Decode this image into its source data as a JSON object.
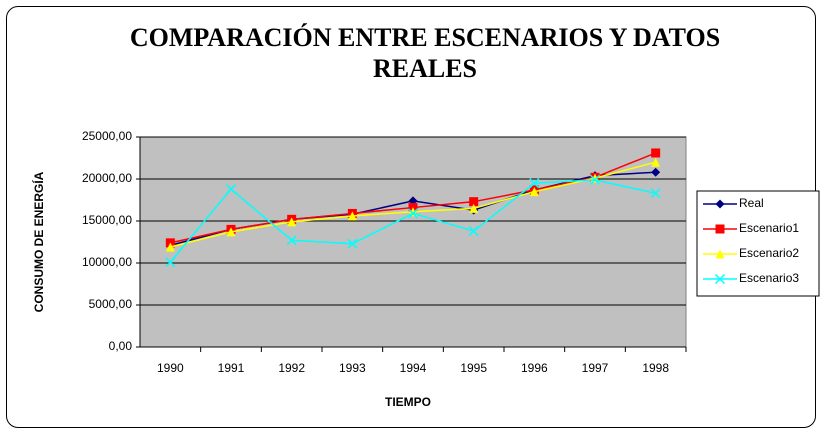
{
  "chart_data": {
    "type": "line",
    "title": "COMPARACIÓN ENTRE ESCENARIOS Y DATOS REALES",
    "x_label": "TIEMPO",
    "y_label": "CONSUMO DE ENERGÍA",
    "categories": [
      "1990",
      "1991",
      "1992",
      "1993",
      "1994",
      "1995",
      "1996",
      "1997",
      "1998"
    ],
    "series": [
      {
        "name": "Real",
        "color": "#000080",
        "marker": "diamond",
        "values": [
          12100,
          14000,
          15200,
          15800,
          17400,
          16300,
          18700,
          20400,
          20800
        ]
      },
      {
        "name": "Escenario1",
        "color": "#ff0000",
        "marker": "square",
        "values": [
          12400,
          14000,
          15200,
          15900,
          16600,
          17300,
          18700,
          20200,
          23100
        ]
      },
      {
        "name": "Escenario2",
        "color": "#ffff00",
        "marker": "triangle",
        "values": [
          11900,
          13700,
          14900,
          15600,
          16100,
          16500,
          18500,
          20100,
          22000
        ]
      },
      {
        "name": "Escenario3",
        "color": "#00ffff",
        "marker": "x",
        "values": [
          10100,
          18800,
          12700,
          12300,
          15900,
          13800,
          19500,
          19900,
          18300
        ]
      }
    ],
    "ylim": [
      0,
      25000
    ],
    "yticks": [
      {
        "value": 0,
        "label": "0,00"
      },
      {
        "value": 5000,
        "label": "5000,00"
      },
      {
        "value": 10000,
        "label": "10000,00"
      },
      {
        "value": 15000,
        "label": "15000,00"
      },
      {
        "value": 20000,
        "label": "20000,00"
      },
      {
        "value": 25000,
        "label": "25000,00"
      }
    ],
    "grid": true,
    "plot_color": "#c0c0c0",
    "legend": "right"
  }
}
